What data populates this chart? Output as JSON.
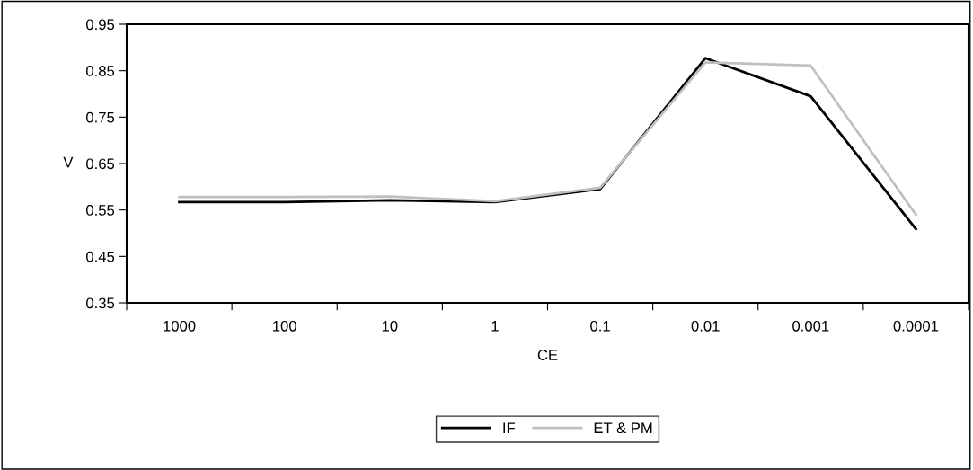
{
  "chart_data": {
    "type": "line",
    "xlabel": "CE",
    "ylabel": "V",
    "categories": [
      "1000",
      "100",
      "10",
      "1",
      "0.1",
      "0.01",
      "0.001",
      "0.0001"
    ],
    "series": [
      {
        "name": "IF",
        "color": "#000000",
        "values": [
          0.567,
          0.567,
          0.571,
          0.567,
          0.595,
          0.877,
          0.795,
          0.509
        ]
      },
      {
        "name": "ET & PM",
        "color": "#c0c0c0",
        "values": [
          0.578,
          0.578,
          0.579,
          0.569,
          0.598,
          0.868,
          0.861,
          0.54
        ]
      }
    ],
    "ylim": [
      0.35,
      0.95
    ],
    "yticks": [
      0.35,
      0.45,
      0.55,
      0.65,
      0.75,
      0.85,
      0.95
    ],
    "grid": false,
    "legend": "bottom",
    "marker": "none",
    "line_style": "solid"
  }
}
